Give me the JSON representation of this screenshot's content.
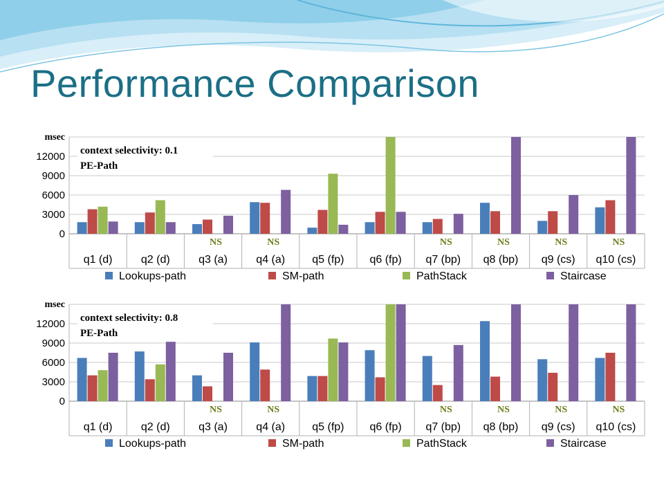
{
  "slide": {
    "title": "Performance Comparison",
    "colors": {
      "title": "#1b6f86",
      "swoosh": "#9ed3ea"
    }
  },
  "chart_data": [
    {
      "type": "bar",
      "annotation_line1": "context selectivity: 0.1",
      "annotation_line2": "PE-Path",
      "ylabel": "msec",
      "ylim": [
        0,
        15000
      ],
      "yticks": [
        0,
        3000,
        6000,
        9000,
        12000
      ],
      "ytick_labels": [
        "0",
        "3000",
        "6000",
        "9000",
        "12000"
      ],
      "categories": [
        "q1 (d)",
        "q2 (d)",
        "q3 (a)",
        "q4 (a)",
        "q5 (fp)",
        "q6 (fp)",
        "q7 (bp)",
        "q8 (bp)",
        "q9 (cs)",
        "q10 (cs)"
      ],
      "series": [
        {
          "name": "Lookups-path",
          "color": "#4a7ebb",
          "values": [
            1800,
            1800,
            1500,
            4900,
            950,
            1800,
            1800,
            4800,
            2000,
            4100
          ]
        },
        {
          "name": "SM-path",
          "color": "#be4b48",
          "values": [
            3800,
            3300,
            2200,
            4800,
            3700,
            3400,
            2300,
            3500,
            3500,
            5200
          ]
        },
        {
          "name": "PathStack",
          "color": "#98b954",
          "values": [
            4200,
            5200,
            null,
            null,
            9300,
            15000,
            null,
            null,
            null,
            null
          ]
        },
        {
          "name": "Staircase",
          "color": "#7d60a0",
          "values": [
            1900,
            1800,
            2800,
            6800,
            1400,
            3400,
            3100,
            15000,
            6000,
            15000
          ]
        }
      ],
      "ns_label": "NS",
      "ns_categories": [
        2,
        3,
        6,
        7,
        8,
        9
      ],
      "legend": "bottom",
      "grid": true
    },
    {
      "type": "bar",
      "annotation_line1": "context selectivity: 0.8",
      "annotation_line2": "PE-Path",
      "ylabel": "msec",
      "ylim": [
        0,
        15000
      ],
      "yticks": [
        0,
        3000,
        6000,
        9000,
        12000
      ],
      "ytick_labels": [
        "0",
        "3000",
        "6000",
        "9000",
        "12000"
      ],
      "categories": [
        "q1 (d)",
        "q2 (d)",
        "q3 (a)",
        "q4 (a)",
        "q5 (fp)",
        "q6 (fp)",
        "q7 (bp)",
        "q8 (bp)",
        "q9 (cs)",
        "q10 (cs)"
      ],
      "series": [
        {
          "name": "Lookups-path",
          "color": "#4a7ebb",
          "values": [
            6700,
            7700,
            4000,
            9100,
            3900,
            7900,
            7000,
            12400,
            6500,
            6700
          ]
        },
        {
          "name": "SM-path",
          "color": "#be4b48",
          "values": [
            4000,
            3400,
            2300,
            4900,
            3900,
            3700,
            2500,
            3800,
            4400,
            7500
          ]
        },
        {
          "name": "PathStack",
          "color": "#98b954",
          "values": [
            4800,
            5700,
            null,
            null,
            9700,
            15000,
            null,
            null,
            null,
            null
          ]
        },
        {
          "name": "Staircase",
          "color": "#7d60a0",
          "values": [
            7500,
            9200,
            7500,
            15000,
            9100,
            15000,
            8700,
            15000,
            15000,
            15000
          ]
        }
      ],
      "ns_label": "NS",
      "ns_categories": [
        2,
        3,
        6,
        7,
        8,
        9
      ],
      "legend": "bottom",
      "grid": true
    }
  ]
}
